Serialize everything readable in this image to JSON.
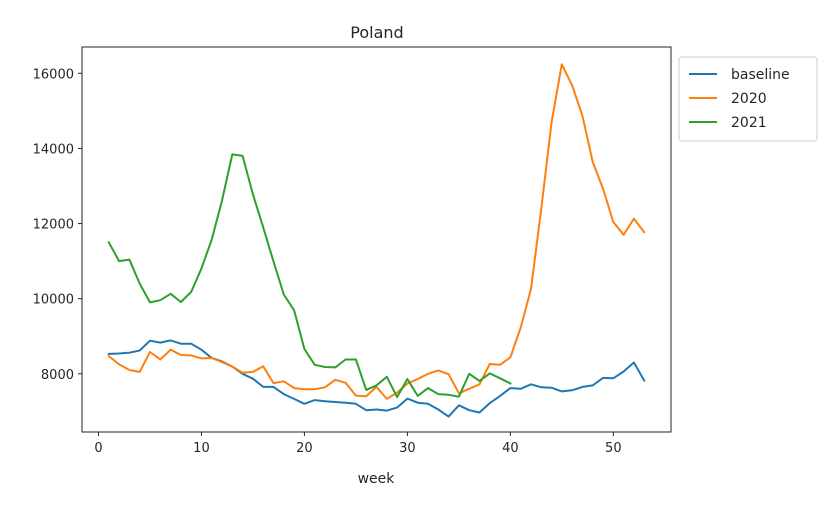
{
  "chart_data": {
    "type": "line",
    "title": "Poland",
    "xlabel": "week",
    "ylabel": "",
    "xlim": [
      -1.6,
      55.6
    ],
    "ylim": [
      6450,
      16700
    ],
    "xticks": [
      0,
      10,
      20,
      30,
      40,
      50
    ],
    "yticks": [
      8000,
      10000,
      12000,
      14000,
      16000
    ],
    "grid": false,
    "legend_position": "outside-top-right",
    "series": [
      {
        "name": "baseline",
        "color": "#1f77b4",
        "x": [
          1,
          2,
          3,
          4,
          5,
          6,
          7,
          8,
          9,
          10,
          11,
          12,
          13,
          14,
          15,
          16,
          17,
          18,
          19,
          20,
          21,
          22,
          23,
          24,
          25,
          26,
          27,
          28,
          29,
          30,
          31,
          32,
          33,
          34,
          35,
          36,
          37,
          38,
          39,
          40,
          41,
          42,
          43,
          44,
          45,
          46,
          47,
          48,
          49,
          50,
          51,
          52,
          53
        ],
        "values": [
          8530,
          8540,
          8560,
          8620,
          8880,
          8830,
          8890,
          8800,
          8800,
          8640,
          8420,
          8330,
          8190,
          8000,
          7870,
          7650,
          7650,
          7460,
          7330,
          7200,
          7300,
          7270,
          7250,
          7230,
          7200,
          7030,
          7050,
          7020,
          7100,
          7340,
          7230,
          7200,
          7050,
          6860,
          7160,
          7030,
          6970,
          7220,
          7410,
          7620,
          7600,
          7720,
          7640,
          7630,
          7530,
          7560,
          7650,
          7690,
          7890,
          7880,
          8060,
          8300,
          7820
        ]
      },
      {
        "name": "2020",
        "color": "#ff7f0e",
        "x": [
          1,
          2,
          3,
          4,
          5,
          6,
          7,
          8,
          9,
          10,
          11,
          12,
          13,
          14,
          15,
          16,
          17,
          18,
          19,
          20,
          21,
          22,
          23,
          24,
          25,
          26,
          27,
          28,
          29,
          30,
          31,
          32,
          33,
          34,
          35,
          36,
          37,
          38,
          39,
          40,
          41,
          42,
          43,
          44,
          45,
          46,
          47,
          48,
          49,
          50,
          51,
          52,
          53
        ],
        "values": [
          8470,
          8250,
          8100,
          8050,
          8580,
          8380,
          8640,
          8500,
          8490,
          8410,
          8420,
          8310,
          8190,
          8030,
          8050,
          8200,
          7750,
          7800,
          7620,
          7590,
          7590,
          7640,
          7840,
          7760,
          7420,
          7400,
          7650,
          7330,
          7500,
          7740,
          7860,
          8000,
          8090,
          7990,
          7480,
          7600,
          7720,
          8260,
          8240,
          8440,
          9230,
          10260,
          12400,
          14700,
          16240,
          15680,
          14870,
          13640,
          12930,
          12040,
          11700,
          12130,
          11770
        ]
      },
      {
        "name": "2021",
        "color": "#2ca02c",
        "x": [
          1,
          2,
          3,
          4,
          5,
          6,
          7,
          8,
          9,
          10,
          11,
          12,
          13,
          14,
          15,
          16,
          17,
          18,
          19,
          20,
          21,
          22,
          23,
          24,
          25,
          26,
          27,
          28,
          29,
          30,
          31,
          32,
          33,
          34,
          35,
          36,
          37,
          38,
          39,
          40
        ],
        "values": [
          11500,
          11000,
          11040,
          10400,
          9900,
          9960,
          10130,
          9910,
          10180,
          10800,
          11570,
          12610,
          13840,
          13800,
          12780,
          11900,
          10990,
          10110,
          9690,
          8660,
          8240,
          8180,
          8170,
          8380,
          8380,
          7570,
          7690,
          7920,
          7380,
          7860,
          7410,
          7620,
          7460,
          7440,
          7390,
          8000,
          7810,
          8010,
          7880,
          7740
        ]
      }
    ]
  }
}
